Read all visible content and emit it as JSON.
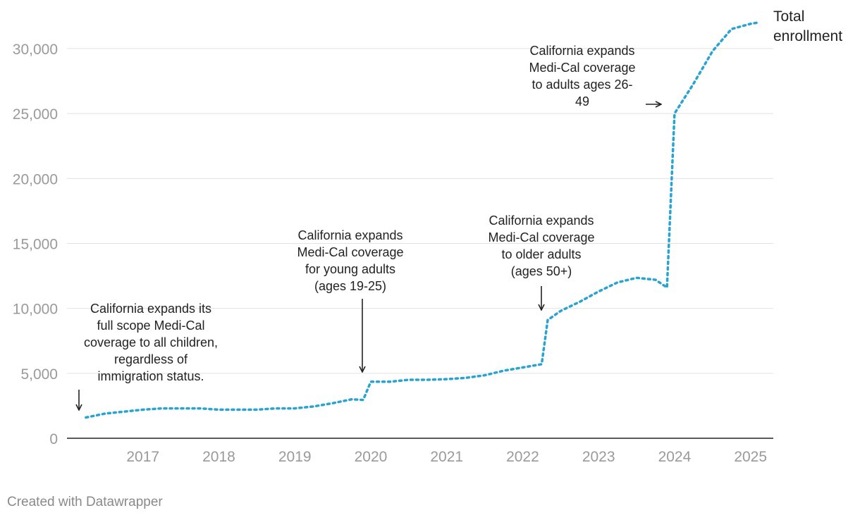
{
  "chart_data": {
    "type": "line",
    "series": [
      {
        "name": "Total enrollment",
        "line_style": "dotted",
        "color": "#2aa3d0",
        "points": [
          [
            2016.25,
            1600
          ],
          [
            2016.5,
            1900
          ],
          [
            2016.75,
            2050
          ],
          [
            2017.0,
            2200
          ],
          [
            2017.25,
            2300
          ],
          [
            2017.5,
            2300
          ],
          [
            2017.75,
            2300
          ],
          [
            2018.0,
            2200
          ],
          [
            2018.25,
            2200
          ],
          [
            2018.5,
            2200
          ],
          [
            2018.75,
            2300
          ],
          [
            2019.0,
            2300
          ],
          [
            2019.25,
            2450
          ],
          [
            2019.5,
            2700
          ],
          [
            2019.75,
            3000
          ],
          [
            2019.9,
            2950
          ],
          [
            2020.0,
            4350
          ],
          [
            2020.25,
            4350
          ],
          [
            2020.5,
            4500
          ],
          [
            2020.75,
            4500
          ],
          [
            2021.0,
            4550
          ],
          [
            2021.25,
            4650
          ],
          [
            2021.5,
            4850
          ],
          [
            2021.75,
            5200
          ],
          [
            2022.0,
            5450
          ],
          [
            2022.25,
            5700
          ],
          [
            2022.33,
            9100
          ],
          [
            2022.5,
            9800
          ],
          [
            2022.75,
            10500
          ],
          [
            2023.0,
            11300
          ],
          [
            2023.25,
            12000
          ],
          [
            2023.5,
            12350
          ],
          [
            2023.75,
            12200
          ],
          [
            2023.9,
            11600
          ],
          [
            2024.0,
            25000
          ],
          [
            2024.25,
            27300
          ],
          [
            2024.5,
            29800
          ],
          [
            2024.75,
            31500
          ],
          [
            2025.0,
            31900
          ],
          [
            2025.1,
            32000
          ]
        ]
      }
    ],
    "x_ticks": [
      "2017",
      "2018",
      "2019",
      "2020",
      "2021",
      "2022",
      "2023",
      "2024",
      "2025"
    ],
    "x_tick_values": [
      2017,
      2018,
      2019,
      2020,
      2021,
      2022,
      2023,
      2024,
      2025
    ],
    "y_ticks": [
      "0",
      "5,000",
      "10,000",
      "15,000",
      "20,000",
      "25,000",
      "30,000"
    ],
    "y_tick_values": [
      0,
      5000,
      10000,
      15000,
      20000,
      25000,
      30000
    ],
    "xlim": [
      2016.0,
      2025.3
    ],
    "ylim": [
      0,
      32000
    ],
    "series_label": [
      "Total",
      "enrollment"
    ],
    "grid": "horizontal",
    "title": "",
    "xlabel": "",
    "ylabel": "",
    "annotations": [
      {
        "lines": [
          "California expands its",
          "full scope Medi-Cal",
          "coverage to all children,",
          "regardless of",
          "immigration status."
        ],
        "target": [
          2016.25,
          1600
        ]
      },
      {
        "lines": [
          "California expands",
          "Medi-Cal coverage",
          "for young adults",
          "(ages 19-25)"
        ],
        "target": [
          2020.0,
          4350
        ]
      },
      {
        "lines": [
          "California expands",
          "Medi-Cal coverage",
          "to older adults",
          "(ages 50+)"
        ],
        "target": [
          2022.33,
          9100
        ]
      },
      {
        "lines": [
          "California expands",
          "Medi-Cal coverage",
          "to adults ages 26-",
          "49"
        ],
        "target": [
          2024.0,
          25000
        ]
      }
    ]
  },
  "credit": "Created with Datawrapper"
}
